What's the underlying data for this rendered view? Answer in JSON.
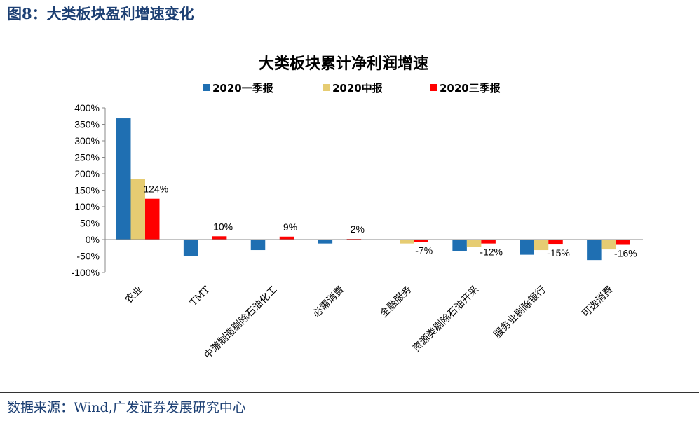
{
  "page": {
    "figure_title": "图8：大类板块盈利增速变化",
    "source": "数据来源：Wind,广发证券发展研究中心"
  },
  "chart_data": {
    "type": "bar",
    "title": "大类板块累计净利润增速",
    "categories": [
      "农业",
      "TMT",
      "中游制造剔除石油化工",
      "必需消费",
      "金融服务",
      "资源类剔除石油开采",
      "服务业剔除银行",
      "可选消费"
    ],
    "series": [
      {
        "name": "2020一季报",
        "color": "#1f6fb2",
        "values": [
          368,
          -50,
          -32,
          -12,
          0,
          -35,
          -46,
          -62
        ]
      },
      {
        "name": "2020中报",
        "color": "#e6cc72",
        "values": [
          183,
          -2,
          -1,
          0,
          -12,
          -22,
          -32,
          -30
        ]
      },
      {
        "name": "2020三季报",
        "color": "#ff0000",
        "values": [
          124,
          10,
          9,
          2,
          -7,
          -12,
          -15,
          -16
        ]
      }
    ],
    "data_labels": [
      "124%",
      "10%",
      "9%",
      "2%",
      "-7%",
      "-12%",
      "-15%",
      "-16%"
    ],
    "ylim": [
      -100,
      400
    ],
    "yticks": [
      -100,
      -50,
      0,
      50,
      100,
      150,
      200,
      250,
      300,
      350,
      400
    ],
    "ytick_labels": [
      "-100%",
      "-50%",
      "0%",
      "50%",
      "100%",
      "150%",
      "200%",
      "250%",
      "300%",
      "350%",
      "400%"
    ],
    "legend_position": "top",
    "grid": false
  }
}
